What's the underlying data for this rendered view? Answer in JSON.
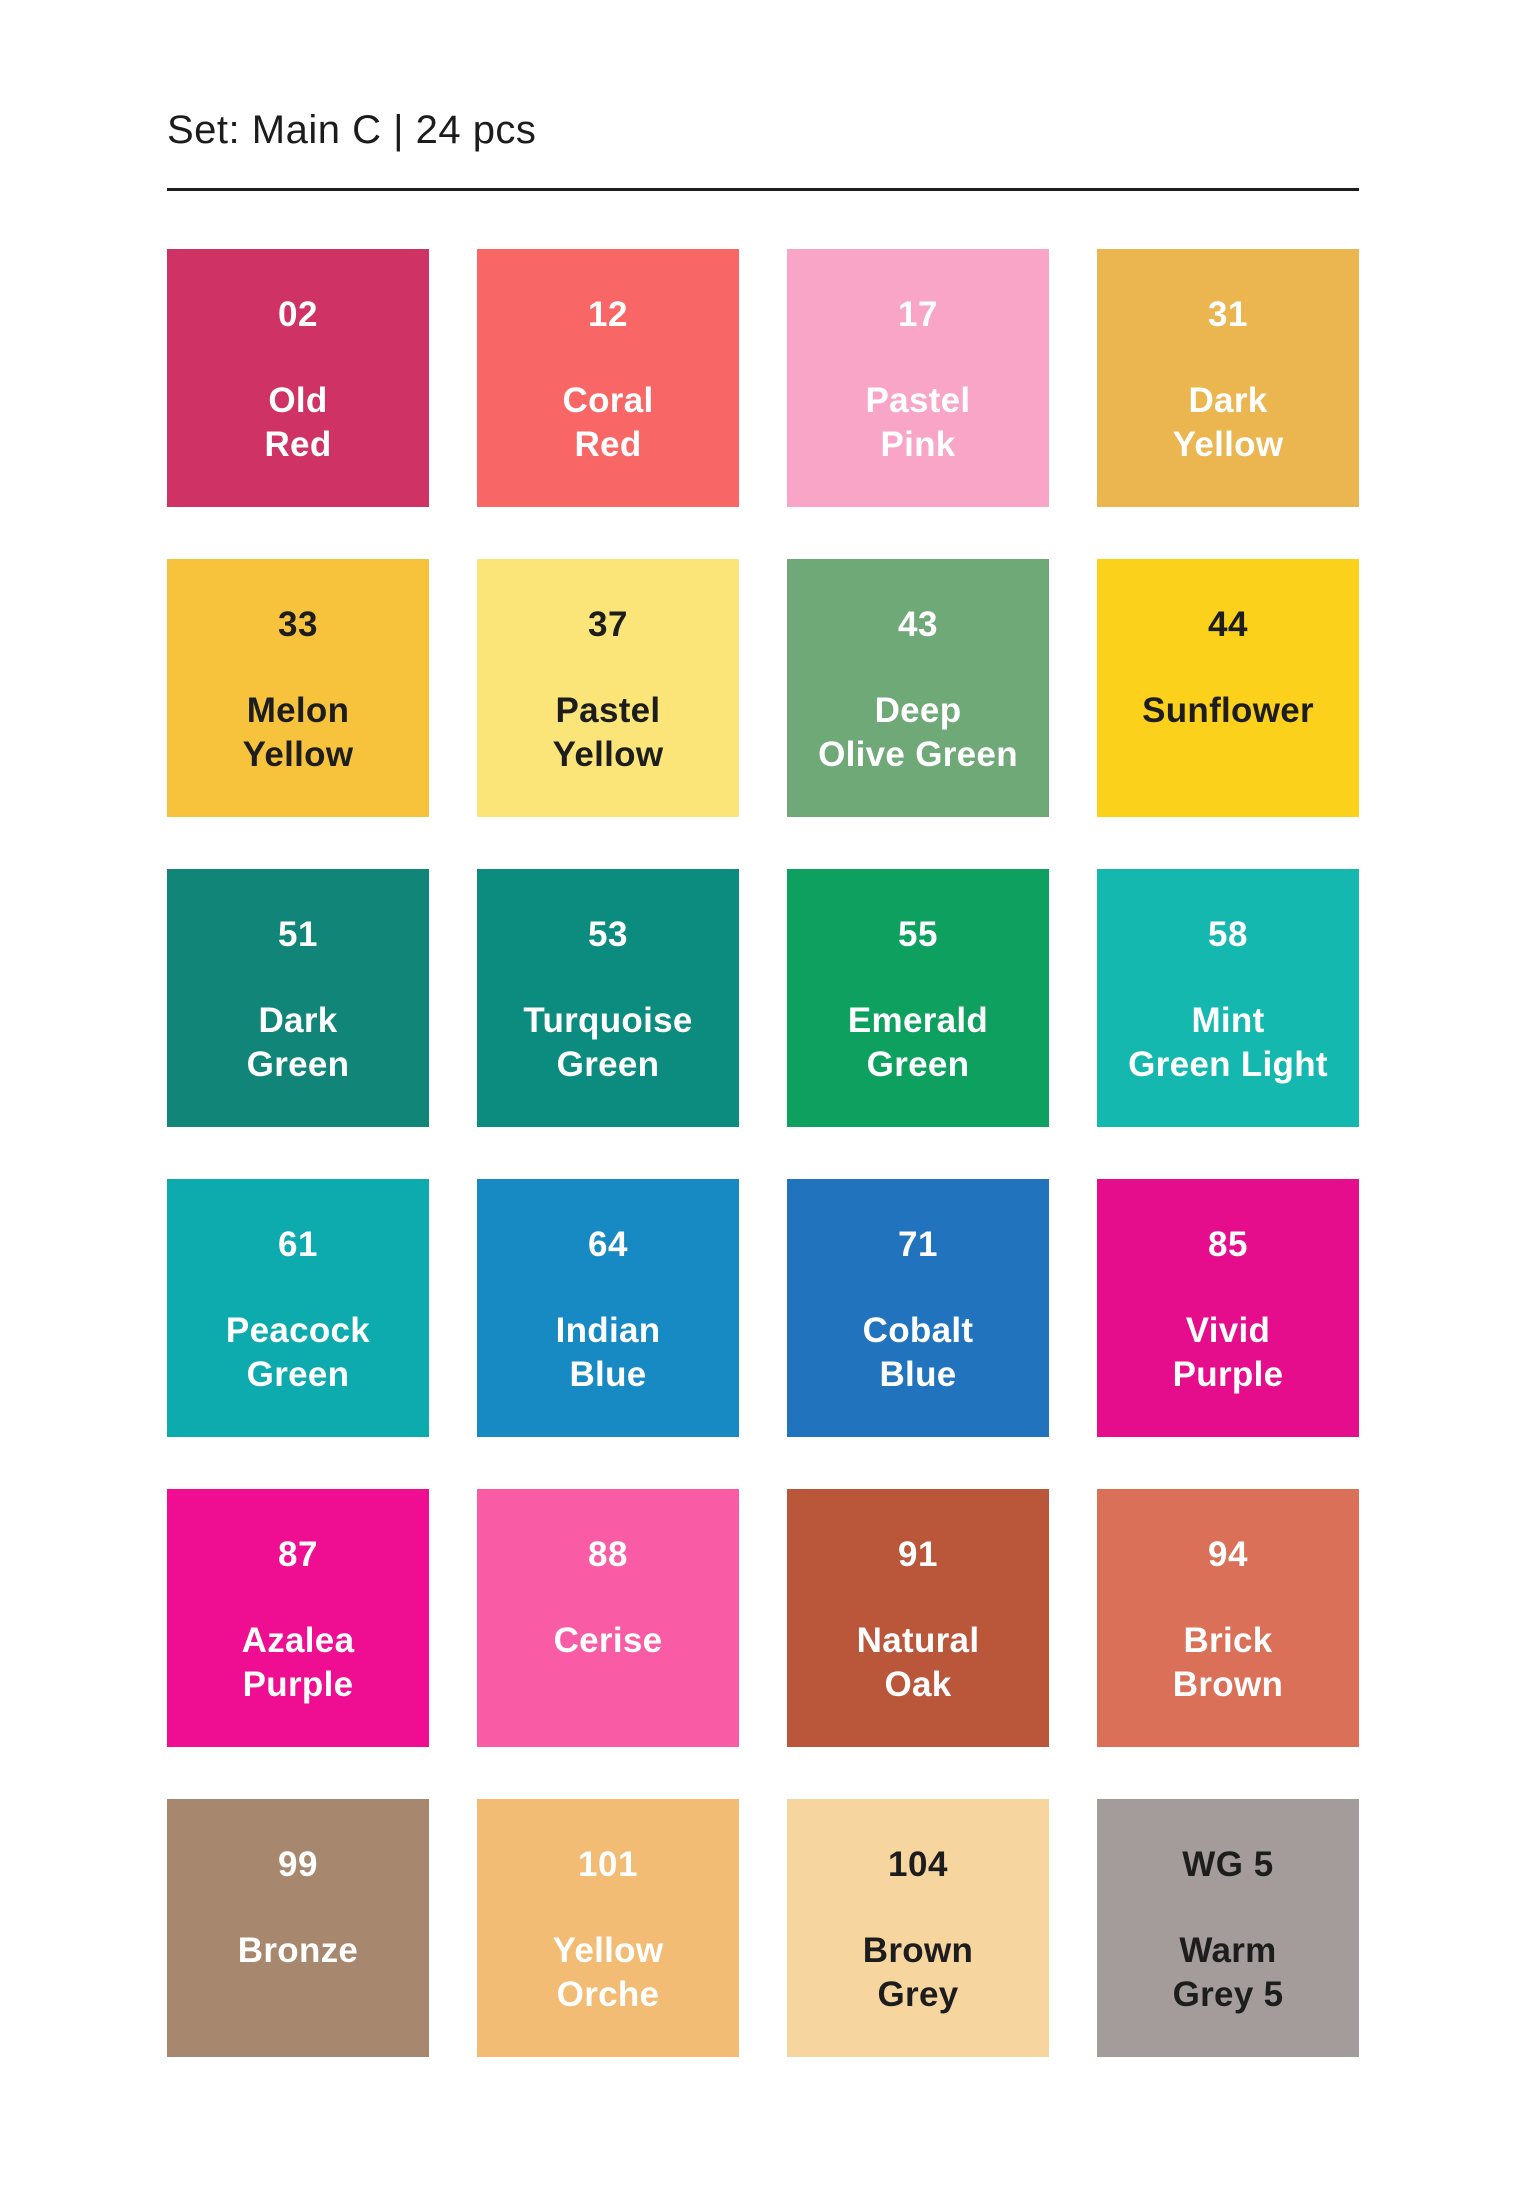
{
  "page": {
    "title": "Set: Main C | 24 pcs",
    "set_name": "Main C",
    "piece_count": "24 pcs"
  },
  "colors": {
    "background": "#FFFFFF",
    "title_text": "#1C1C1C",
    "rule": "#1D1D1D",
    "swatch_text_light": "#FFFFFF",
    "swatch_text_dark": "#1D1D1D"
  },
  "swatches": [
    {
      "code": "02",
      "name": "Old\nRed",
      "full_name": "Old Red",
      "color": "#CF3365",
      "text": "light"
    },
    {
      "code": "12",
      "name": "Coral\nRed",
      "full_name": "Coral Red",
      "color": "#F96666",
      "text": "light"
    },
    {
      "code": "17",
      "name": "Pastel\nPink",
      "full_name": "Pastel Pink",
      "color": "#F9A5C7",
      "text": "light"
    },
    {
      "code": "31",
      "name": "Dark\nYellow",
      "full_name": "Dark Yellow",
      "color": "#EBB550",
      "text": "light"
    },
    {
      "code": "33",
      "name": "Melon\nYellow",
      "full_name": "Melon Yellow",
      "color": "#F7C33C",
      "text": "dark"
    },
    {
      "code": "37",
      "name": "Pastel\nYellow",
      "full_name": "Pastel Yellow",
      "color": "#FBE578",
      "text": "dark"
    },
    {
      "code": "43",
      "name": "Deep\nOlive Green",
      "full_name": "Deep Olive Green",
      "color": "#6FA978",
      "text": "light"
    },
    {
      "code": "44",
      "name": "Sunflower",
      "full_name": "Sunflower",
      "color": "#FBD11B",
      "text": "dark"
    },
    {
      "code": "51",
      "name": "Dark\nGreen",
      "full_name": "Dark Green",
      "color": "#108578",
      "text": "light"
    },
    {
      "code": "53",
      "name": "Turquoise\nGreen",
      "full_name": "Turquoise Green",
      "color": "#0C8C7E",
      "text": "light"
    },
    {
      "code": "55",
      "name": "Emerald\nGreen",
      "full_name": "Emerald Green",
      "color": "#0DA05F",
      "text": "light"
    },
    {
      "code": "58",
      "name": "Mint\nGreen Light",
      "full_name": "Mint Green Light",
      "color": "#14B8AE",
      "text": "light"
    },
    {
      "code": "61",
      "name": "Peacock\nGreen",
      "full_name": "Peacock Green",
      "color": "#0DAAAE",
      "text": "light"
    },
    {
      "code": "64",
      "name": "Indian\nBlue",
      "full_name": "Indian Blue",
      "color": "#1789C3",
      "text": "light"
    },
    {
      "code": "71",
      "name": "Cobalt\nBlue",
      "full_name": "Cobalt Blue",
      "color": "#2173BE",
      "text": "light"
    },
    {
      "code": "85",
      "name": "Vivid\nPurple",
      "full_name": "Vivid Purple",
      "color": "#E60D8D",
      "text": "light"
    },
    {
      "code": "87",
      "name": "Azalea\nPurple",
      "full_name": "Azalea Purple",
      "color": "#EF0D92",
      "text": "light"
    },
    {
      "code": "88",
      "name": "Cerise",
      "full_name": "Cerise",
      "color": "#F95CA4",
      "text": "light"
    },
    {
      "code": "91",
      "name": "Natural\nOak",
      "full_name": "Natural Oak",
      "color": "#BA5639",
      "text": "light"
    },
    {
      "code": "94",
      "name": "Brick\nBrown",
      "full_name": "Brick Brown",
      "color": "#DA7057",
      "text": "light"
    },
    {
      "code": "99",
      "name": "Bronze",
      "full_name": "Bronze",
      "color": "#A8876F",
      "text": "light"
    },
    {
      "code": "101",
      "name": "Yellow\nOrche",
      "full_name": "Yellow Orche",
      "color": "#F2BC74",
      "text": "light"
    },
    {
      "code": "104",
      "name": "Brown\nGrey",
      "full_name": "Brown Grey",
      "color": "#F7D59F",
      "text": "dark"
    },
    {
      "code": "WG 5",
      "name": "Warm\nGrey 5",
      "full_name": "Warm Grey 5",
      "color": "#A49C9A",
      "text": "dark"
    }
  ]
}
